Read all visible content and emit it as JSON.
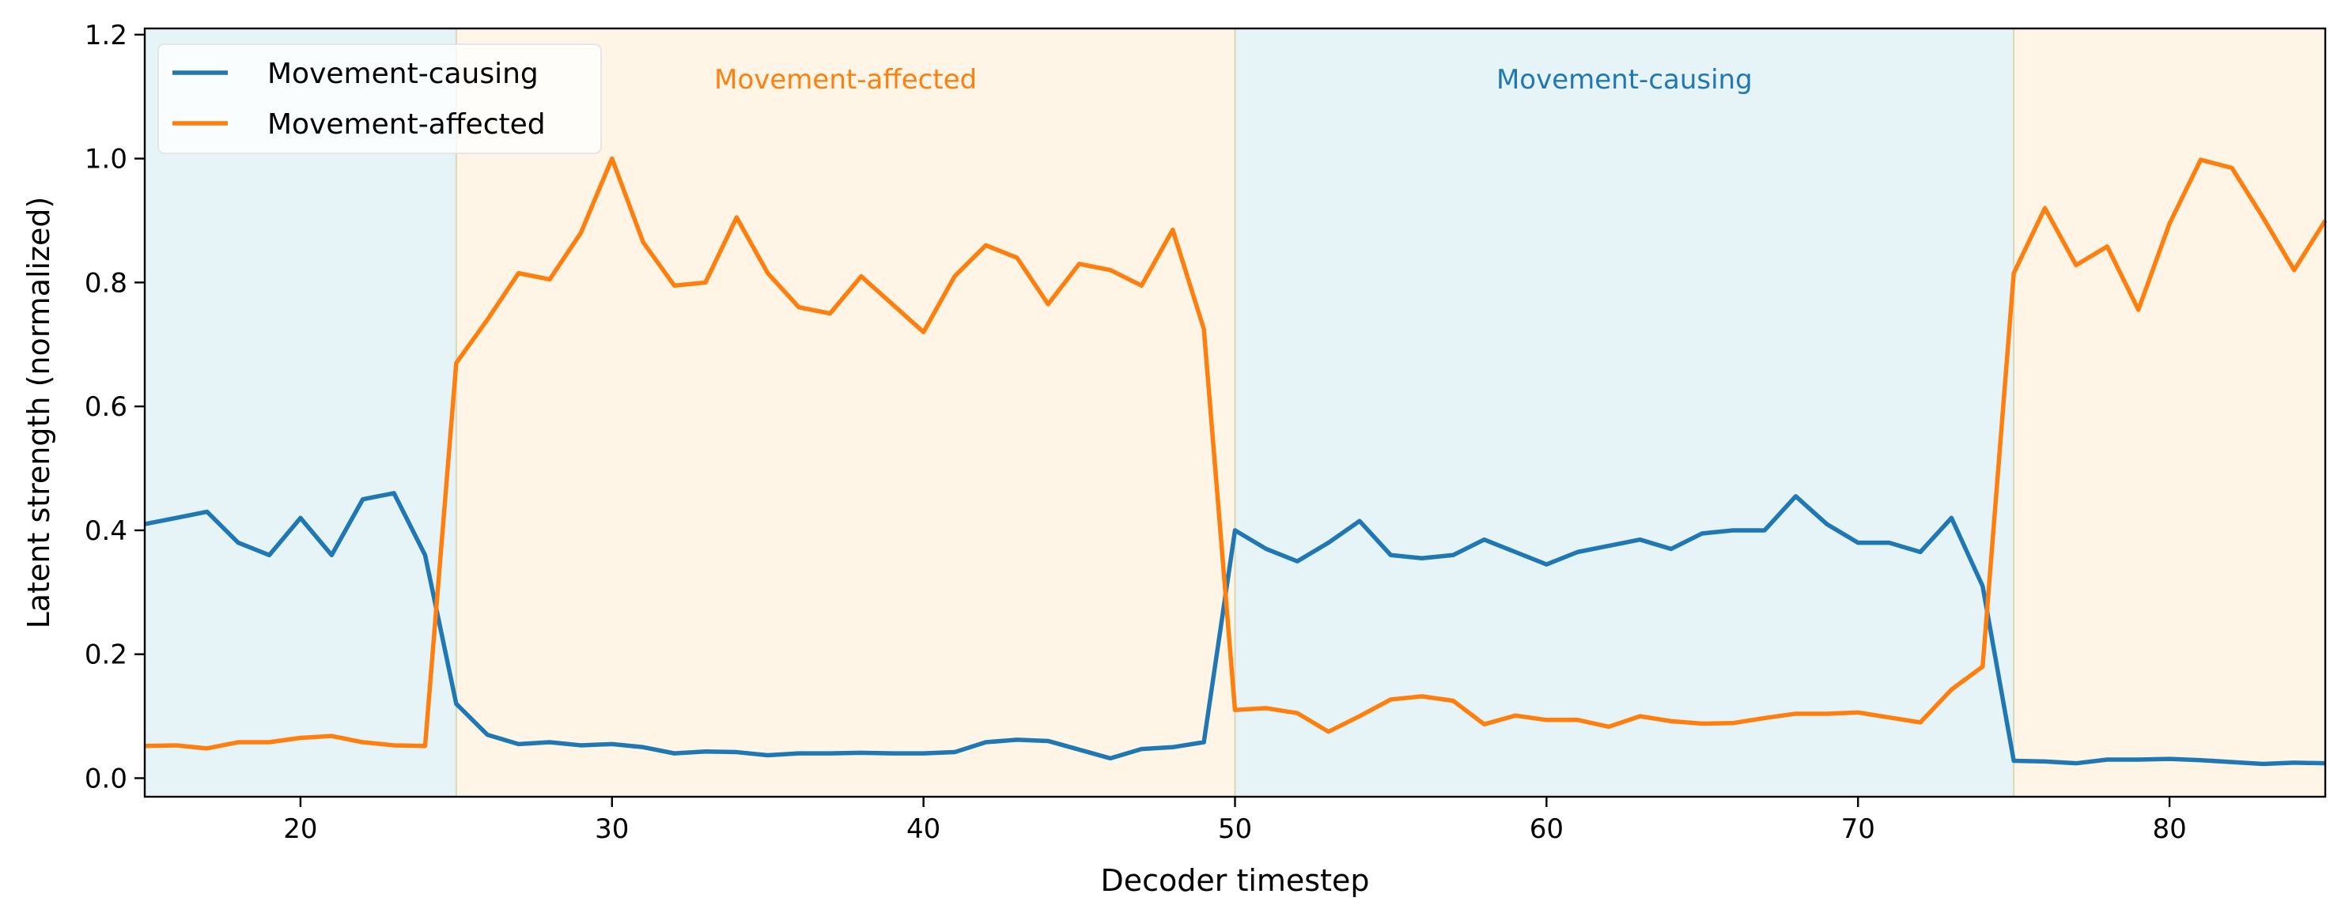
{
  "chart_data": {
    "type": "line",
    "xlabel": "Decoder timestep",
    "ylabel": "Latent strength (normalized)",
    "xlim": [
      15,
      85
    ],
    "ylim": [
      -0.03,
      1.21
    ],
    "xticks": [
      20,
      30,
      40,
      50,
      60,
      70,
      80
    ],
    "yticks": [
      0.0,
      0.2,
      0.4,
      0.6,
      0.8,
      1.0,
      1.2
    ],
    "grid": false,
    "legend_position": "top-left",
    "colors": {
      "causing": "#1f77b4",
      "affected": "#ff7f0e",
      "causing_bg": "#add8e6",
      "affected_bg": "#ffdead"
    },
    "regions": [
      {
        "start": 15,
        "end": 25,
        "kind": "causing",
        "label": ""
      },
      {
        "start": 25,
        "end": 50,
        "kind": "affected",
        "label": "Movement-affected"
      },
      {
        "start": 50,
        "end": 75,
        "kind": "causing",
        "label": "Movement-causing"
      },
      {
        "start": 75,
        "end": 85,
        "kind": "affected",
        "label": ""
      }
    ],
    "x": [
      15,
      16,
      17,
      18,
      19,
      20,
      21,
      22,
      23,
      24,
      25,
      26,
      27,
      28,
      29,
      30,
      31,
      32,
      33,
      34,
      35,
      36,
      37,
      38,
      39,
      40,
      41,
      42,
      43,
      44,
      45,
      46,
      47,
      48,
      49,
      50,
      51,
      52,
      53,
      54,
      55,
      56,
      57,
      58,
      59,
      60,
      61,
      62,
      63,
      64,
      65,
      66,
      67,
      68,
      69,
      70,
      71,
      72,
      73,
      74,
      75,
      76,
      77,
      78,
      79,
      80,
      81,
      82,
      83,
      84,
      85
    ],
    "series": [
      {
        "name": "Movement-causing",
        "key": "causing",
        "values": [
          0.41,
          0.42,
          0.43,
          0.38,
          0.36,
          0.42,
          0.36,
          0.45,
          0.46,
          0.36,
          0.12,
          0.07,
          0.055,
          0.058,
          0.053,
          0.055,
          0.05,
          0.04,
          0.043,
          0.042,
          0.037,
          0.04,
          0.04,
          0.041,
          0.04,
          0.04,
          0.042,
          0.058,
          0.062,
          0.06,
          0.046,
          0.032,
          0.047,
          0.05,
          0.058,
          0.4,
          0.37,
          0.35,
          0.38,
          0.415,
          0.36,
          0.355,
          0.36,
          0.385,
          0.365,
          0.345,
          0.365,
          0.375,
          0.385,
          0.37,
          0.395,
          0.4,
          0.4,
          0.455,
          0.41,
          0.38,
          0.38,
          0.365,
          0.42,
          0.31,
          0.028,
          0.027,
          0.024,
          0.03,
          0.03,
          0.031,
          0.029,
          0.026,
          0.023,
          0.025,
          0.024
        ]
      },
      {
        "name": "Movement-affected",
        "key": "affected",
        "values": [
          0.052,
          0.053,
          0.048,
          0.058,
          0.058,
          0.065,
          0.068,
          0.058,
          0.053,
          0.052,
          0.67,
          0.74,
          0.815,
          0.805,
          0.88,
          1.0,
          0.865,
          0.795,
          0.8,
          0.905,
          0.815,
          0.76,
          0.75,
          0.81,
          0.765,
          0.72,
          0.81,
          0.86,
          0.84,
          0.765,
          0.83,
          0.82,
          0.795,
          0.885,
          0.725,
          0.11,
          0.113,
          0.105,
          0.075,
          0.1,
          0.127,
          0.132,
          0.125,
          0.087,
          0.101,
          0.094,
          0.094,
          0.083,
          0.1,
          0.092,
          0.088,
          0.089,
          0.097,
          0.104,
          0.104,
          0.106,
          0.098,
          0.09,
          0.143,
          0.18,
          0.815,
          0.92,
          0.828,
          0.858,
          0.756,
          0.895,
          0.998,
          0.985,
          0.905,
          0.82,
          0.9
        ]
      }
    ]
  }
}
